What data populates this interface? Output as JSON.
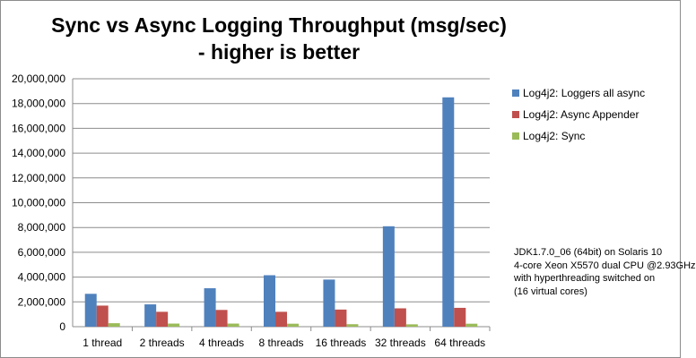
{
  "chart_data": {
    "type": "bar",
    "title_lines": [
      "Sync vs Async Logging Throughput (msg/sec)",
      "- higher is better"
    ],
    "categories": [
      "1 thread",
      "2 threads",
      "4 threads",
      "8 threads",
      "16 threads",
      "32 threads",
      "64 threads"
    ],
    "series": [
      {
        "name": "Log4j2: Loggers all async",
        "color": "#4f81bd",
        "values": [
          2650000,
          1800000,
          3100000,
          4150000,
          3800000,
          8100000,
          18500000
        ]
      },
      {
        "name": "Log4j2: Async Appender",
        "color": "#c0504d",
        "values": [
          1700000,
          1200000,
          1350000,
          1200000,
          1380000,
          1480000,
          1520000
        ]
      },
      {
        "name": "Log4j2: Sync",
        "color": "#9bbb59",
        "values": [
          280000,
          250000,
          250000,
          240000,
          200000,
          190000,
          240000
        ]
      }
    ],
    "ylim": [
      0,
      20000000
    ],
    "yticks": [
      0,
      2000000,
      4000000,
      6000000,
      8000000,
      10000000,
      12000000,
      14000000,
      16000000,
      18000000,
      20000000
    ],
    "ytick_labels": [
      "0",
      "2,000,000",
      "4,000,000",
      "6,000,000",
      "8,000,000",
      "10,000,000",
      "12,000,000",
      "14,000,000",
      "16,000,000",
      "18,000,000",
      "20,000,000"
    ],
    "grid": true,
    "legend_position": "right",
    "annotation_lines": [
      "JDK1.7.0_06 (64bit) on Solaris 10",
      "4-core Xeon X5570 dual CPU @2.93GHz",
      "with hyperthreading switched on",
      "(16 virtual cores)"
    ]
  }
}
